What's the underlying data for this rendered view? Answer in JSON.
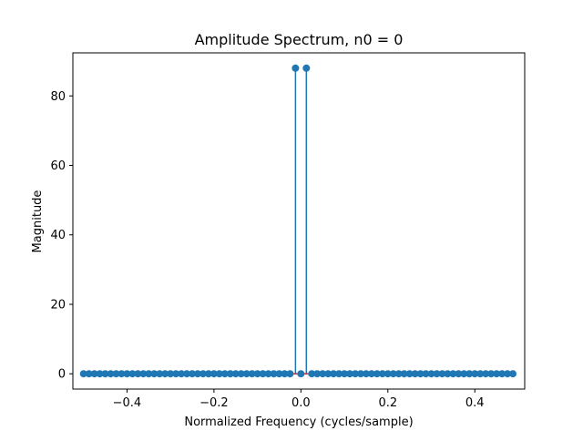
{
  "chart_data": {
    "type": "stem",
    "title": "Amplitude Spectrum, n0 = 0",
    "xlabel": "Normalized Frequency (cycles/sample)",
    "ylabel": "Magnitude",
    "xlim": [
      -0.5245,
      0.5147
    ],
    "ylim": [
      -4.4,
      92.4
    ],
    "x_ticks": [
      -0.4,
      -0.2,
      0.0,
      0.2,
      0.4
    ],
    "x_tick_labels": [
      "−0.4",
      "−0.2",
      "0.0",
      "0.2",
      "0.4"
    ],
    "y_ticks": [
      0,
      20,
      40,
      60,
      80
    ],
    "y_tick_labels": [
      "0",
      "20",
      "40",
      "60",
      "80"
    ],
    "grid": false,
    "series": [
      {
        "frequency_start": -0.5,
        "frequency_step": 0.0125,
        "num_points": 80,
        "baseline_value": 0,
        "nonzero_points": [
          {
            "x": -0.0125,
            "y": 88
          },
          {
            "x": 0.0125,
            "y": 88
          }
        ],
        "color": "#1f77b4",
        "baseline_color": "#d62728"
      }
    ]
  }
}
